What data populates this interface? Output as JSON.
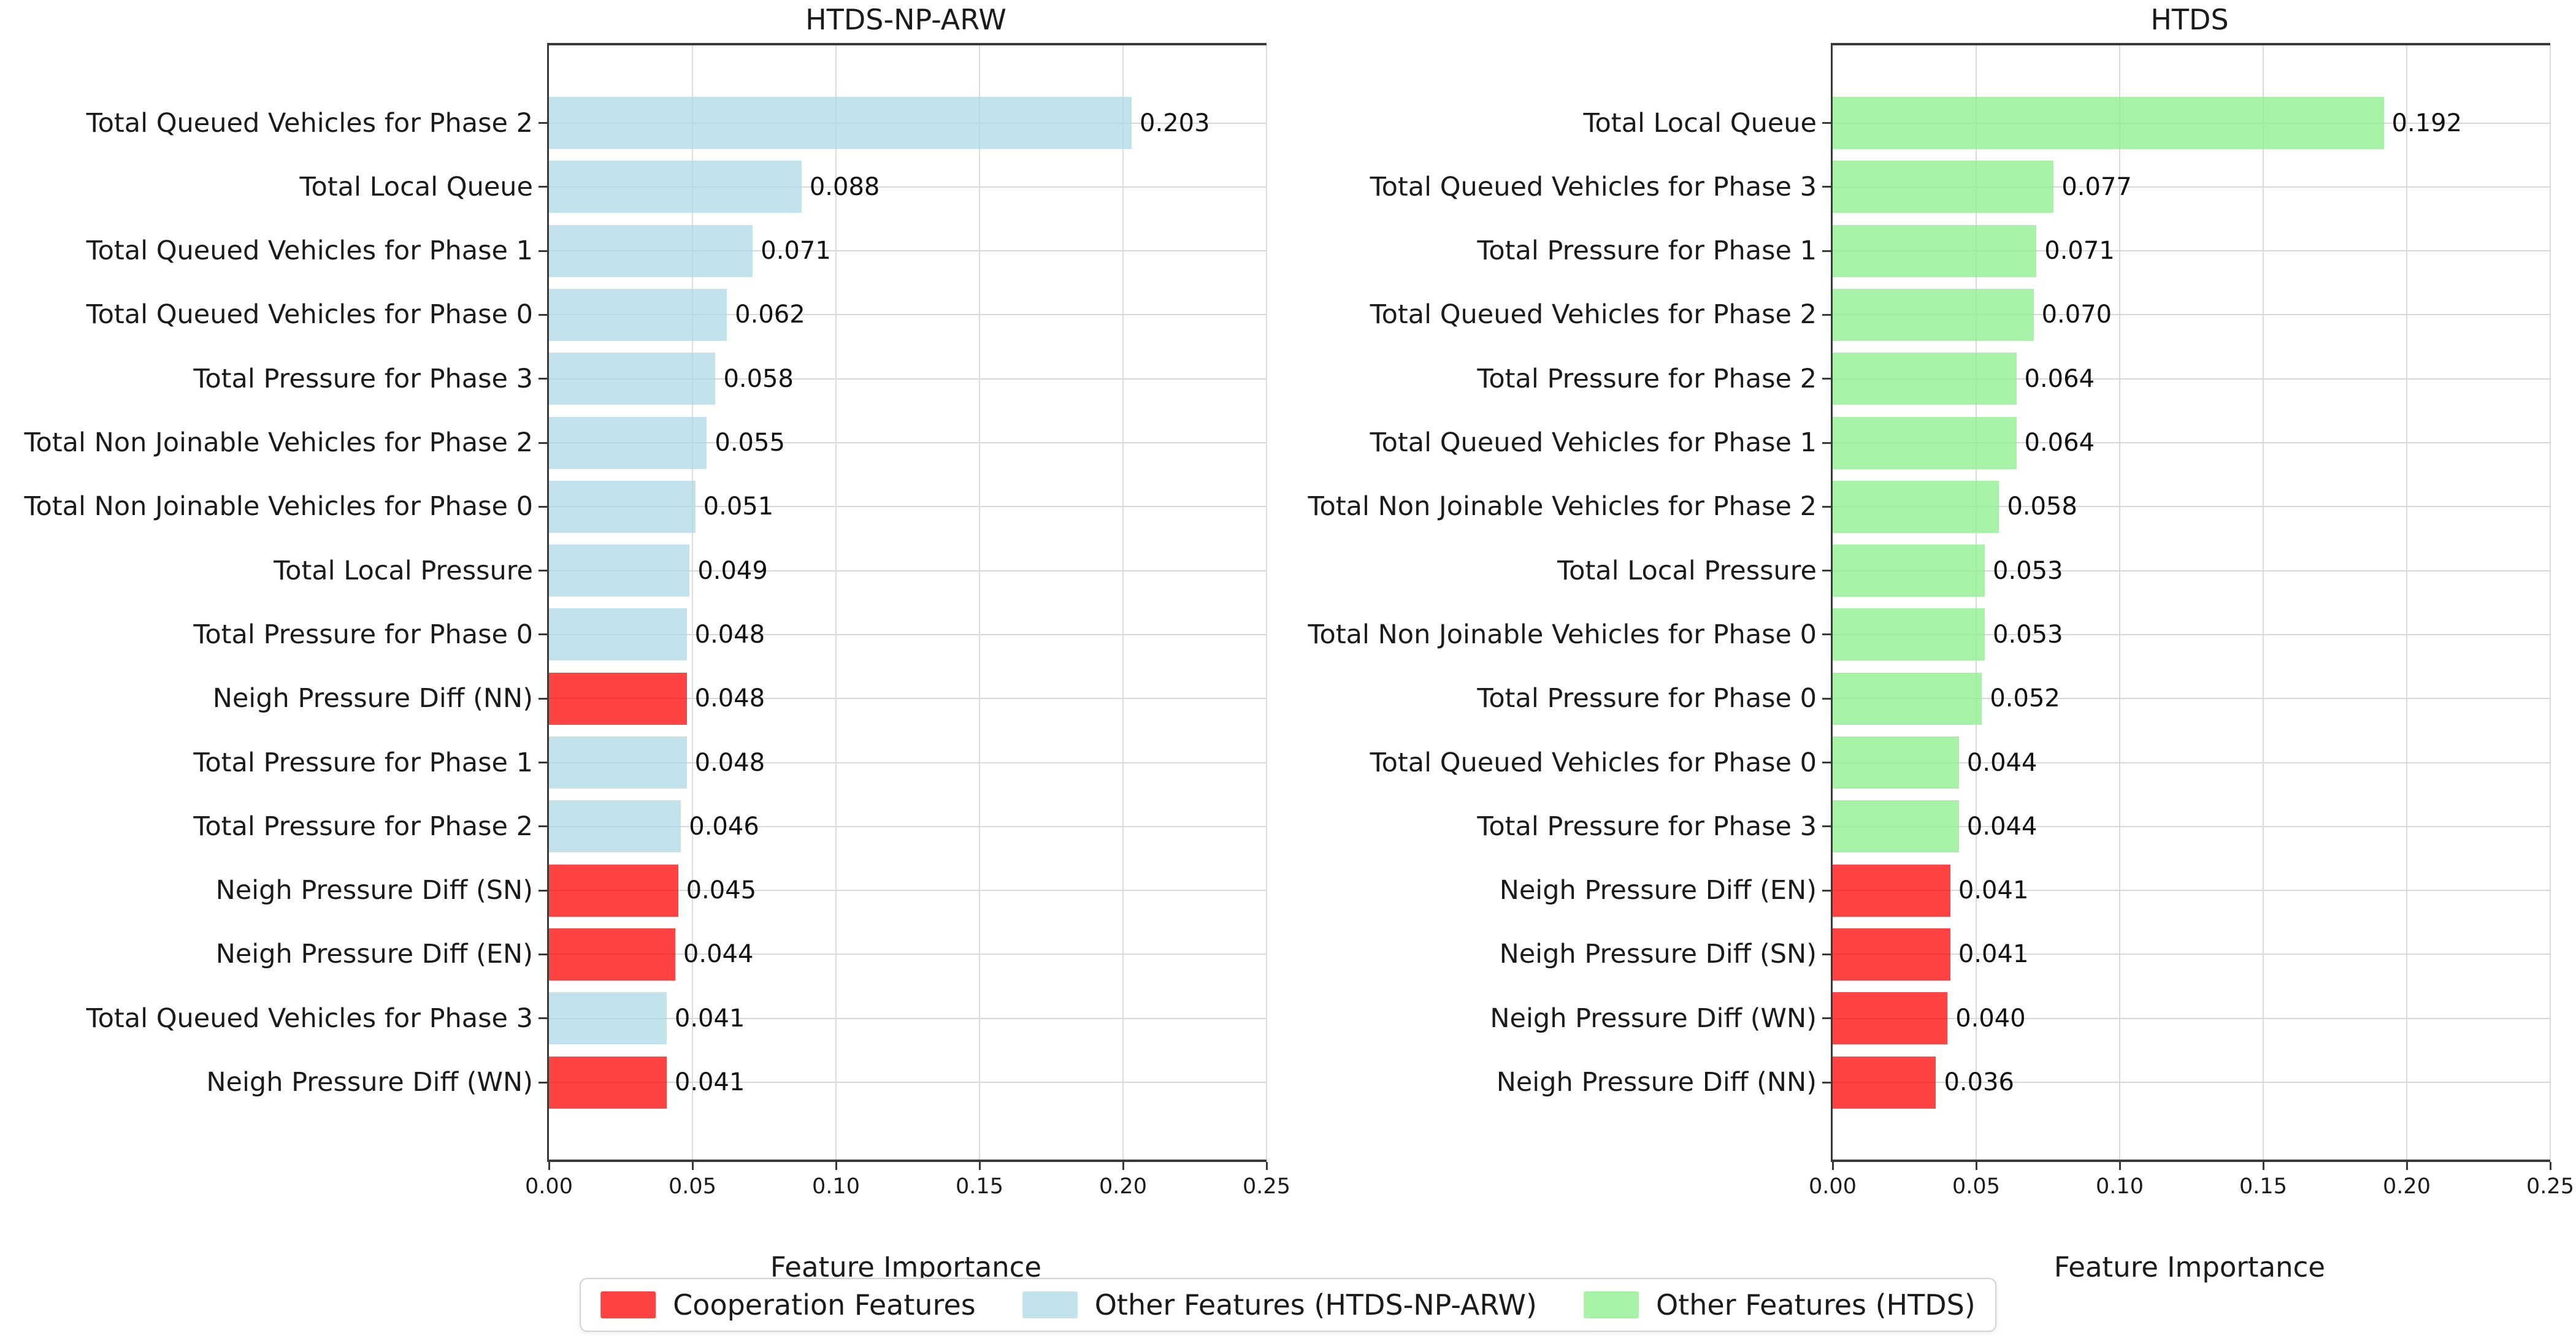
{
  "palette": {
    "coop_bar": "rgba(255,0,0,0.74)",
    "arw_bar": "rgba(173,216,230,0.75)",
    "htds_bar": "rgba(144,238,144,0.78)",
    "coop_solid": "#FF4242",
    "arw_solid": "#C2E2EC",
    "htds_solid": "#A8F2A8",
    "grid": "#dbdbdb",
    "spine": "#3a3a3a"
  },
  "chart_data": [
    {
      "type": "bar",
      "orientation": "horizontal",
      "title": "HTDS-NP-ARW",
      "xlabel": "Feature Importance",
      "xlim": [
        0,
        0.25
      ],
      "xticks": [
        0,
        0.05,
        0.1,
        0.15,
        0.2,
        0.25
      ],
      "xtick_labels": [
        "0.00",
        "0.05",
        "0.10",
        "0.15",
        "0.20",
        "0.25"
      ],
      "grid": true,
      "bar_color_key": "arw_bar",
      "categories": [
        "Total Queued Vehicles for Phase 2",
        "Total Local Queue",
        "Total Queued Vehicles for Phase 1",
        "Total Queued Vehicles for Phase 0",
        "Total Pressure for Phase 3",
        "Total Non Joinable Vehicles for Phase 2",
        "Total Non Joinable Vehicles for Phase 0",
        "Total Local Pressure",
        "Total Pressure for Phase 0",
        "Neigh Pressure Diff (NN)",
        "Total Pressure for Phase 1",
        "Total Pressure for Phase 2",
        "Neigh Pressure Diff (SN)",
        "Neigh Pressure Diff (EN)",
        "Total Queued Vehicles for Phase 3",
        "Neigh Pressure Diff (WN)"
      ],
      "values": [
        0.203,
        0.088,
        0.071,
        0.062,
        0.058,
        0.055,
        0.051,
        0.049,
        0.048,
        0.048,
        0.048,
        0.046,
        0.045,
        0.044,
        0.041,
        0.041
      ],
      "value_labels": [
        "0.203",
        "0.088",
        "0.071",
        "0.062",
        "0.058",
        "0.055",
        "0.051",
        "0.049",
        "0.048",
        "0.048",
        "0.048",
        "0.046",
        "0.045",
        "0.044",
        "0.041",
        "0.041"
      ],
      "groups": [
        "other",
        "other",
        "other",
        "other",
        "other",
        "other",
        "other",
        "other",
        "other",
        "coop",
        "other",
        "other",
        "coop",
        "coop",
        "other",
        "coop"
      ]
    },
    {
      "type": "bar",
      "orientation": "horizontal",
      "title": "HTDS",
      "xlabel": "Feature Importance",
      "xlim": [
        0,
        0.25
      ],
      "xticks": [
        0,
        0.05,
        0.1,
        0.15,
        0.2,
        0.25
      ],
      "xtick_labels": [
        "0.00",
        "0.05",
        "0.10",
        "0.15",
        "0.20",
        "0.25"
      ],
      "grid": true,
      "bar_color_key": "htds_bar",
      "categories": [
        "Total Local Queue",
        "Total Queued Vehicles for Phase 3",
        "Total Pressure for Phase 1",
        "Total Queued Vehicles for Phase 2",
        "Total Pressure for Phase 2",
        "Total Queued Vehicles for Phase 1",
        "Total Non Joinable Vehicles for Phase 2",
        "Total Local Pressure",
        "Total Non Joinable Vehicles for Phase 0",
        "Total Pressure for Phase 0",
        "Total Queued Vehicles for Phase 0",
        "Total Pressure for Phase 3",
        "Neigh Pressure Diff (EN)",
        "Neigh Pressure Diff (SN)",
        "Neigh Pressure Diff (WN)",
        "Neigh Pressure Diff (NN)"
      ],
      "values": [
        0.192,
        0.077,
        0.071,
        0.07,
        0.064,
        0.064,
        0.058,
        0.053,
        0.053,
        0.052,
        0.044,
        0.044,
        0.041,
        0.041,
        0.04,
        0.036
      ],
      "value_labels": [
        "0.192",
        "0.077",
        "0.071",
        "0.070",
        "0.064",
        "0.064",
        "0.058",
        "0.053",
        "0.053",
        "0.052",
        "0.044",
        "0.044",
        "0.041",
        "0.041",
        "0.040",
        "0.036"
      ],
      "groups": [
        "other",
        "other",
        "other",
        "other",
        "other",
        "other",
        "other",
        "other",
        "other",
        "other",
        "other",
        "other",
        "coop",
        "coop",
        "coop",
        "coop"
      ]
    }
  ],
  "legend": {
    "items": [
      {
        "label": "Cooperation Features",
        "swatch_key": "coop_solid"
      },
      {
        "label": "Other Features (HTDS-NP-ARW)",
        "swatch_key": "arw_solid"
      },
      {
        "label": "Other Features (HTDS)",
        "swatch_key": "htds_solid"
      }
    ]
  }
}
